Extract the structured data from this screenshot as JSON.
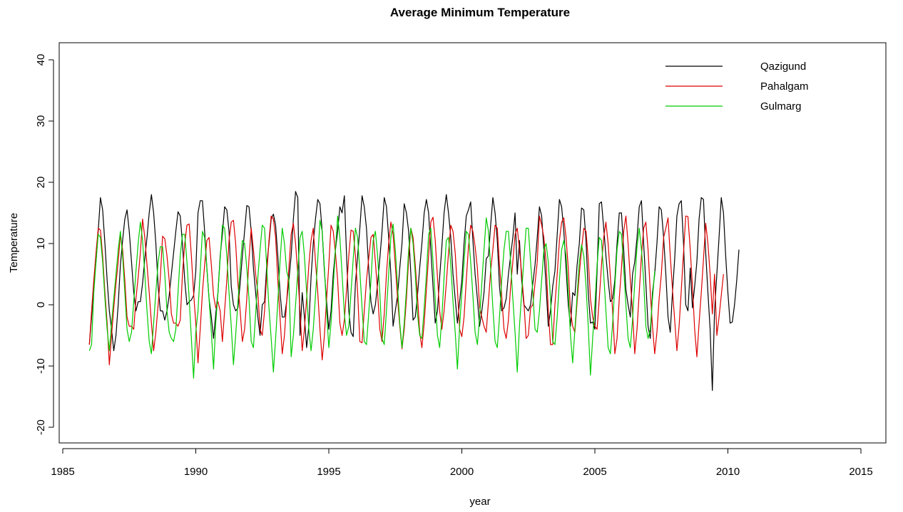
{
  "chart_data": {
    "type": "line",
    "title": "Average Minimum Temperature",
    "xlabel": "year",
    "ylabel": "Temperature",
    "xlim": [
      1985,
      2016
    ],
    "ylim": [
      -22,
      42
    ],
    "x_ticks": [
      1985,
      1990,
      1995,
      2000,
      2005,
      2010,
      2015
    ],
    "y_ticks": [
      -20,
      -10,
      0,
      10,
      20,
      30,
      40
    ],
    "grid": false,
    "legend_position": "top-right",
    "series": [
      {
        "name": "Qazigund",
        "color": "#000000",
        "x_start": 1986.0,
        "x_step": 0.0833333,
        "values": [
          -6.5,
          -2.0,
          3.5,
          7.0,
          12.0,
          17.5,
          15.5,
          10.0,
          4.0,
          -1.0,
          -4.0,
          -7.5,
          -5.0,
          0.0,
          6.5,
          10.5,
          14.0,
          15.5,
          12.0,
          7.0,
          2.0,
          -1.0,
          0.5,
          0.5,
          3.5,
          7.5,
          11.0,
          15.0,
          18.0,
          15.0,
          10.0,
          3.0,
          -1.0,
          -1.0,
          -2.5,
          -1.0,
          1.5,
          5.0,
          8.5,
          12.0,
          15.2,
          14.5,
          10.0,
          4.0,
          0.0,
          0.5,
          0.8,
          1.5,
          5.5,
          15.0,
          17.0,
          17.0,
          12.0,
          6.0,
          1.0,
          -2.0,
          -5.5,
          -1.5,
          2.0,
          8.0,
          11.5,
          16.0,
          15.5,
          12.0,
          3.0,
          0.0,
          -1.0,
          -0.5,
          3.5,
          8.0,
          12.0,
          16.2,
          16.0,
          12.0,
          6.0,
          2.0,
          -2.0,
          -5.0,
          0.0,
          0.5,
          6.5,
          10.0,
          14.0,
          14.8,
          13.0,
          8.0,
          2.0,
          -2.0,
          -2.0,
          0.5,
          4.0,
          8.0,
          14.0,
          18.5,
          17.5,
          -5.0,
          2.0,
          -2.0,
          -7.0,
          -3.5,
          4.5,
          10.0,
          14.0,
          17.2,
          16.5,
          12.0,
          5.5,
          0.5,
          -4.0,
          -1.0,
          5.0,
          9.0,
          12.0,
          16.0,
          15.0,
          17.8,
          8.0,
          -1.0,
          -4.5,
          -5.2,
          3.5,
          8.0,
          12.5,
          17.8,
          16.0,
          12.5,
          6.0,
          0.5,
          -1.5,
          0.0,
          3.5,
          7.5,
          12.0,
          17.5,
          16.0,
          11.0,
          5.0,
          -3.5,
          -1.0,
          1.5,
          6.0,
          10.0,
          16.5,
          15.0,
          12.0,
          5.0,
          -2.5,
          -2.0,
          1.5,
          6.0,
          10.0,
          15.0,
          17.2,
          15.0,
          9.0,
          3.0,
          -3.0,
          -1.0,
          4.5,
          9.5,
          15.0,
          18.0,
          15.0,
          11.0,
          5.0,
          1.0,
          -3.0,
          0.5,
          4.0,
          10.0,
          14.5,
          15.5,
          16.8,
          10.5,
          5.0,
          1.0,
          -3.5,
          -1.0,
          2.0,
          7.5,
          8.0,
          13.0,
          17.5,
          15.0,
          10.5,
          3.0,
          -1.0,
          -0.5,
          1.0,
          5.0,
          8.0,
          11.0,
          15.0,
          5.0,
          10.5,
          4.0,
          0.0,
          -0.5,
          -1.0,
          0.0,
          3.5,
          6.5,
          11.0,
          16.0,
          14.5,
          9.0,
          3.0,
          -3.5,
          -1.0,
          3.0,
          5.5,
          11.5,
          17.2,
          16.0,
          12.0,
          6.0,
          0.0,
          -3.5,
          2.0,
          1.5,
          6.5,
          10.0,
          15.8,
          15.5,
          10.5,
          2.0,
          -3.0,
          -2.8,
          -4.0,
          5.5,
          16.5,
          16.8,
          12.5,
          8.0,
          4.0,
          0.5,
          1.0,
          4.0,
          10.0,
          15.0,
          15.0,
          9.0,
          2.5,
          0.0,
          -2.0,
          5.0,
          7.0,
          11.0,
          16.0,
          17.0,
          10.0,
          3.5,
          -3.5,
          -5.5,
          2.0,
          5.0,
          10.0,
          16.0,
          15.5,
          11.0,
          5.0,
          -2.0,
          -4.5,
          2.0,
          7.5,
          14.5,
          16.5,
          17.0,
          10.0,
          0.0,
          -1.0,
          6.0,
          -0.5,
          3.0,
          7.0,
          14.0,
          17.5,
          17.2,
          8.5,
          2.0,
          -4.0,
          -14.0,
          -1.0,
          5.0,
          11.0,
          17.5,
          15.0,
          8.0,
          2.0,
          -3.0,
          -2.8,
          0.0,
          4.0,
          9.0
        ]
      },
      {
        "name": "Pahalgam",
        "color": "#dd0000",
        "x_start": 1986.0,
        "x_step": 0.0833333,
        "values": [
          -6.5,
          -1.0,
          4.0,
          8.5,
          12.5,
          12.2,
          8.0,
          2.0,
          -3.0,
          -9.8,
          -5.0,
          -0.5,
          3.5,
          7.0,
          11.5,
          9.0,
          4.0,
          -2.0,
          -3.5,
          -3.5,
          -4.0,
          1.0,
          4.5,
          8.5,
          14.0,
          11.0,
          6.5,
          2.0,
          -3.0,
          -7.5,
          -4.5,
          0.0,
          4.5,
          11.2,
          10.8,
          8.0,
          4.0,
          -1.5,
          -3.0,
          -3.0,
          -3.5,
          -2.5,
          5.0,
          10.0,
          13.0,
          13.2,
          8.0,
          2.0,
          -3.0,
          -9.5,
          -4.0,
          2.0,
          6.5,
          10.5,
          11.0,
          6.5,
          1.5,
          -0.5,
          0.5,
          -1.0,
          -6.0,
          -1.0,
          4.0,
          10.5,
          13.5,
          13.8,
          10.0,
          3.5,
          -1.0,
          -6.0,
          -4.0,
          1.0,
          7.5,
          12.5,
          9.0,
          5.0,
          2.0,
          -4.0,
          -5.0,
          -1.0,
          5.0,
          10.5,
          14.5,
          14.0,
          11.0,
          4.0,
          -2.0,
          -8.0,
          -5.0,
          0.5,
          6.0,
          11.5,
          13.3,
          10.0,
          5.0,
          -1.0,
          -7.5,
          -4.0,
          1.0,
          6.5,
          10.5,
          12.5,
          7.0,
          2.0,
          -4.0,
          -9.0,
          -5.0,
          1.0,
          6.5,
          13.0,
          12.0,
          8.5,
          4.0,
          -3.0,
          -5.0,
          -2.5,
          2.5,
          8.0,
          12.2,
          12.0,
          8.0,
          2.0,
          -6.0,
          -6.2,
          -1.0,
          4.0,
          7.5,
          11.0,
          11.5,
          7.0,
          2.0,
          -4.0,
          -6.0,
          -1.5,
          5.0,
          10.0,
          13.5,
          11.5,
          6.5,
          1.0,
          -3.5,
          -7.2,
          -4.0,
          1.0,
          7.5,
          12.5,
          11.0,
          6.5,
          1.5,
          -4.5,
          -7.0,
          -3.0,
          2.5,
          8.0,
          13.5,
          14.3,
          10.5,
          4.5,
          -1.0,
          -4.0,
          -1.0,
          3.5,
          8.5,
          13.0,
          12.0,
          8.5,
          2.5,
          -4.0,
          -5.2,
          -2.0,
          4.0,
          9.5,
          13.0,
          12.0,
          9.5,
          6.0,
          -0.5,
          -2.0,
          -3.5,
          -4.5,
          0.5,
          5.5,
          9.0,
          13.0,
          12.5,
          6.5,
          1.5,
          -4.0,
          -5.5,
          -2.5,
          3.0,
          7.0,
          11.5,
          12.5,
          9.0,
          5.0,
          0.5,
          -5.5,
          -5.0,
          -0.5,
          0.0,
          3.5,
          7.0,
          14.5,
          13.0,
          11.0,
          7.0,
          -1.0,
          -6.5,
          -6.5,
          0.0,
          5.0,
          10.5,
          13.5,
          14.2,
          11.0,
          6.0,
          -1.0,
          -3.5,
          -4.5,
          0.5,
          5.0,
          9.0,
          12.5,
          12.0,
          7.5,
          1.0,
          -2.0,
          -3.5,
          -4.0,
          1.0,
          6.5,
          11.0,
          13.5,
          10.0,
          4.5,
          -1.0,
          -8.0,
          -5.5,
          1.0,
          6.0,
          12.0,
          14.5,
          10.0,
          4.0,
          -1.0,
          -8.0,
          -4.0,
          2.0,
          8.0,
          12.5,
          13.5,
          9.0,
          2.0,
          -3.5,
          -8.0,
          -4.5,
          1.0,
          5.0,
          11.0,
          12.5,
          14.2,
          8.0,
          2.5,
          -2.5,
          -7.5,
          -3.5,
          2.5,
          8.5,
          14.5,
          14.4,
          9.0,
          3.0,
          -4.0,
          -8.5,
          -3.0,
          2.0,
          7.5,
          13.3,
          10.0,
          5.0,
          -1.5,
          5.0,
          -5.0,
          -2.0,
          1.5,
          5.0
        ]
      },
      {
        "name": "Gulmarg",
        "color": "#00cc00",
        "x_start": 1986.0,
        "x_step": 0.0833333,
        "values": [
          -7.5,
          -6.5,
          2.0,
          7.0,
          11.5,
          11.0,
          7.0,
          1.0,
          -4.0,
          -7.5,
          -3.0,
          1.0,
          5.0,
          9.0,
          12.0,
          8.0,
          2.0,
          -4.0,
          -6.0,
          -4.5,
          0.5,
          5.5,
          10.0,
          13.5,
          10.5,
          5.0,
          -1.0,
          -6.0,
          -8.0,
          -3.0,
          2.0,
          7.0,
          9.5,
          9.5,
          5.0,
          -1.0,
          -4.5,
          -5.5,
          -6.0,
          -4.0,
          2.0,
          8.0,
          11.5,
          11.5,
          7.0,
          1.0,
          -5.5,
          -12.0,
          -4.5,
          -1.0,
          5.5,
          12.0,
          11.0,
          6.0,
          1.0,
          -4.5,
          -10.5,
          -3.0,
          2.0,
          7.5,
          13.0,
          12.5,
          8.0,
          2.0,
          -3.5,
          -9.8,
          -5.0,
          0.5,
          6.0,
          10.5,
          10.0,
          6.0,
          1.0,
          -6.0,
          -7.0,
          -1.5,
          4.5,
          9.0,
          13.0,
          12.5,
          6.0,
          -0.5,
          -5.5,
          -11.0,
          -5.5,
          0.5,
          7.0,
          12.5,
          10.0,
          5.5,
          4.0,
          -8.5,
          -5.0,
          0.0,
          5.5,
          11.0,
          12.0,
          8.0,
          2.0,
          -4.0,
          -7.5,
          -4.0,
          1.5,
          7.5,
          13.8,
          12.0,
          6.0,
          -1.0,
          -7.0,
          -3.0,
          3.0,
          9.0,
          14.5,
          11.0,
          5.0,
          -1.5,
          -5.0,
          -3.5,
          2.0,
          7.5,
          12.5,
          11.0,
          5.5,
          -0.5,
          -6.0,
          -6.5,
          -1.5,
          4.0,
          10.5,
          12.0,
          8.0,
          2.0,
          -5.5,
          -6.5,
          -1.0,
          5.0,
          11.0,
          13.2,
          9.0,
          3.0,
          -3.0,
          -7.0,
          -3.0,
          2.5,
          9.0,
          12.5,
          10.0,
          5.0,
          -1.5,
          -5.0,
          -5.5,
          -0.5,
          5.0,
          11.5,
          12.5,
          7.0,
          1.0,
          -5.0,
          -7.0,
          -2.0,
          4.5,
          10.5,
          11.0,
          6.5,
          0.5,
          -4.5,
          -10.5,
          -3.5,
          2.0,
          7.0,
          12.0,
          11.5,
          7.0,
          1.5,
          -4.5,
          -6.5,
          -2.0,
          3.5,
          9.0,
          14.2,
          12.0,
          6.0,
          -0.5,
          -6.0,
          -7.0,
          -2.0,
          4.0,
          9.0,
          12.0,
          12.0,
          7.0,
          1.0,
          -4.5,
          -11.0,
          -3.5,
          2.0,
          7.5,
          12.5,
          12.5,
          7.0,
          2.0,
          -4.0,
          -4.5,
          -1.0,
          4.0,
          9.0,
          10.0,
          7.0,
          1.0,
          -6.0,
          -6.5,
          -2.0,
          4.0,
          9.0,
          10.5,
          8.0,
          2.0,
          -5.0,
          -9.5,
          -4.0,
          1.5,
          7.0,
          9.8,
          8.0,
          3.0,
          -3.5,
          -11.5,
          -5.5,
          0.0,
          6.5,
          11.0,
          10.5,
          5.0,
          -1.0,
          -7.0,
          -8.0,
          -3.0,
          3.0,
          9.0,
          12.0,
          11.5,
          6.0,
          0.0,
          -5.5,
          -7.0,
          -2.5,
          3.5,
          9.5,
          12.5,
          9.0,
          4.0,
          -3.5,
          -5.5,
          -4.0,
          1.0,
          5.5
        ]
      }
    ]
  }
}
